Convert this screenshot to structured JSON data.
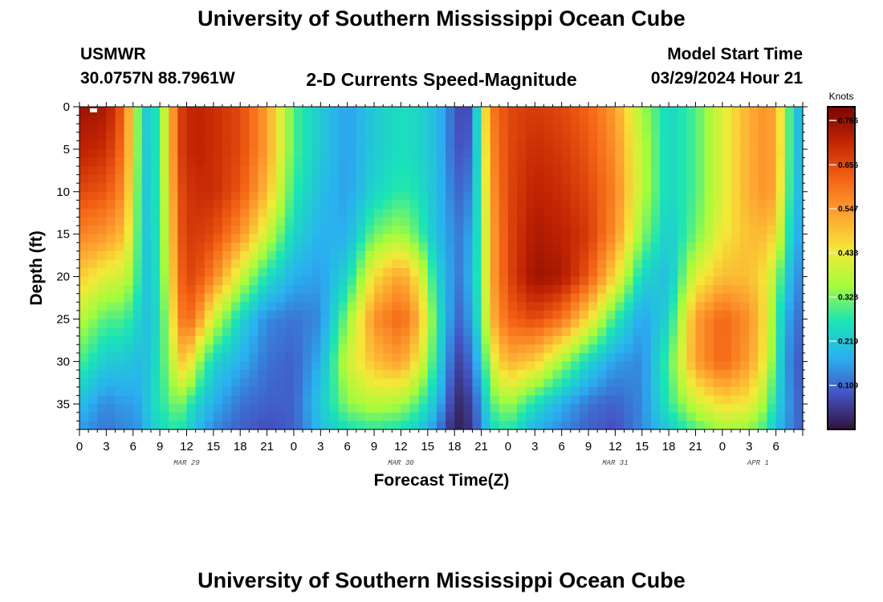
{
  "header": {
    "title": "University of Southern Mississippi Ocean Cube",
    "station": "USMWR",
    "coords": "30.0757N  88.7961W",
    "subtitle": "2-D Currents Speed-Magnitude",
    "model_label": "Model Start Time",
    "model_time": "03/29/2024 Hour 21"
  },
  "footer": {
    "title": "University of Southern Mississippi Ocean Cube"
  },
  "colors": {
    "colormap": [
      "#30123b",
      "#4454c4",
      "#2ab0f0",
      "#1ae4b6",
      "#a4fc3c",
      "#f5e838",
      "#fea331",
      "#f36315",
      "#c32503",
      "#7a0403"
    ]
  },
  "chart_data": {
    "type": "heatmap",
    "xlabel": "Forecast Time(Z)",
    "ylabel": "Depth (ft)",
    "x_range_hours": [
      0,
      81
    ],
    "ylim": [
      0,
      38
    ],
    "y_ticks": [
      0,
      5,
      10,
      15,
      20,
      25,
      30,
      35
    ],
    "x_tick_labels": [
      "0",
      "3",
      "6",
      "9",
      "12",
      "15",
      "18",
      "21",
      "0",
      "3",
      "6",
      "9",
      "12",
      "15",
      "18",
      "21",
      "0",
      "3",
      "6",
      "9",
      "12",
      "15",
      "18",
      "21",
      "0",
      "3",
      "6"
    ],
    "date_labels": [
      {
        "label": "MAR 29",
        "hour": 12
      },
      {
        "label": "MAR 30",
        "hour": 36
      },
      {
        "label": "MAR 31",
        "hour": 60
      },
      {
        "label": "APR 1",
        "hour": 76
      }
    ],
    "colorbar": {
      "title": "Knots",
      "ticks": [
        "0.766",
        "0.656",
        "0.547",
        "0.438",
        "0.328",
        "0.219",
        "0.109"
      ],
      "min": 0.0,
      "max": 0.8
    },
    "speed_profile_knots": {
      "hours": [
        0,
        3,
        5,
        6,
        7,
        8,
        10,
        11,
        12,
        13,
        15,
        18,
        21,
        24,
        27,
        30,
        33,
        36,
        38,
        40,
        42,
        43,
        44,
        45,
        46,
        48,
        51,
        54,
        57,
        60,
        63,
        66,
        69,
        72,
        75,
        77,
        78,
        79,
        80,
        81
      ],
      "depths_ft": [
        0,
        5,
        10,
        15,
        20,
        25,
        30,
        35,
        38
      ],
      "values": [
        [
          0.76,
          0.72,
          0.66,
          0.58,
          0.48,
          0.38,
          0.3,
          0.2,
          0.16
        ],
        [
          0.74,
          0.7,
          0.64,
          0.55,
          0.42,
          0.3,
          0.22,
          0.14,
          0.12
        ],
        [
          0.62,
          0.6,
          0.56,
          0.5,
          0.4,
          0.3,
          0.22,
          0.16,
          0.14
        ],
        [
          0.42,
          0.42,
          0.4,
          0.38,
          0.34,
          0.26,
          0.2,
          0.16,
          0.14
        ],
        [
          0.25,
          0.25,
          0.24,
          0.24,
          0.24,
          0.22,
          0.2,
          0.18,
          0.16
        ],
        [
          0.2,
          0.2,
          0.2,
          0.2,
          0.2,
          0.2,
          0.22,
          0.24,
          0.22
        ],
        [
          0.45,
          0.45,
          0.44,
          0.42,
          0.4,
          0.36,
          0.34,
          0.3,
          0.26
        ],
        [
          0.66,
          0.66,
          0.64,
          0.62,
          0.6,
          0.56,
          0.46,
          0.34,
          0.28
        ],
        [
          0.7,
          0.7,
          0.68,
          0.68,
          0.66,
          0.62,
          0.5,
          0.3,
          0.24
        ],
        [
          0.72,
          0.72,
          0.7,
          0.68,
          0.66,
          0.58,
          0.38,
          0.24,
          0.2
        ],
        [
          0.7,
          0.7,
          0.7,
          0.66,
          0.58,
          0.4,
          0.24,
          0.18,
          0.14
        ],
        [
          0.66,
          0.66,
          0.64,
          0.56,
          0.4,
          0.24,
          0.18,
          0.12,
          0.1
        ],
        [
          0.54,
          0.54,
          0.5,
          0.4,
          0.26,
          0.14,
          0.12,
          0.1,
          0.08
        ],
        [
          0.3,
          0.3,
          0.28,
          0.24,
          0.18,
          0.12,
          0.1,
          0.1,
          0.1
        ],
        [
          0.22,
          0.22,
          0.2,
          0.18,
          0.16,
          0.14,
          0.18,
          0.22,
          0.2
        ],
        [
          0.16,
          0.16,
          0.16,
          0.18,
          0.24,
          0.34,
          0.4,
          0.34,
          0.26
        ],
        [
          0.22,
          0.22,
          0.24,
          0.32,
          0.46,
          0.56,
          0.5,
          0.38,
          0.28
        ],
        [
          0.26,
          0.26,
          0.28,
          0.36,
          0.54,
          0.62,
          0.54,
          0.36,
          0.26
        ],
        [
          0.24,
          0.24,
          0.26,
          0.3,
          0.44,
          0.52,
          0.44,
          0.3,
          0.22
        ],
        [
          0.2,
          0.2,
          0.2,
          0.2,
          0.24,
          0.28,
          0.26,
          0.2,
          0.14
        ],
        [
          0.1,
          0.1,
          0.12,
          0.14,
          0.14,
          0.12,
          0.08,
          0.04,
          0.02
        ],
        [
          0.06,
          0.08,
          0.1,
          0.12,
          0.12,
          0.1,
          0.06,
          0.03,
          0.02
        ],
        [
          0.1,
          0.12,
          0.16,
          0.2,
          0.22,
          0.2,
          0.14,
          0.08,
          0.06
        ],
        [
          0.36,
          0.34,
          0.32,
          0.3,
          0.3,
          0.28,
          0.22,
          0.16,
          0.14
        ],
        [
          0.58,
          0.56,
          0.54,
          0.52,
          0.52,
          0.5,
          0.4,
          0.3,
          0.24
        ],
        [
          0.66,
          0.66,
          0.66,
          0.66,
          0.66,
          0.62,
          0.52,
          0.36,
          0.28
        ],
        [
          0.68,
          0.7,
          0.72,
          0.74,
          0.76,
          0.66,
          0.48,
          0.26,
          0.18
        ],
        [
          0.66,
          0.68,
          0.7,
          0.72,
          0.74,
          0.6,
          0.36,
          0.18,
          0.14
        ],
        [
          0.62,
          0.64,
          0.66,
          0.68,
          0.64,
          0.46,
          0.24,
          0.12,
          0.1
        ],
        [
          0.54,
          0.56,
          0.58,
          0.56,
          0.46,
          0.28,
          0.16,
          0.1,
          0.08
        ],
        [
          0.36,
          0.38,
          0.38,
          0.34,
          0.24,
          0.16,
          0.14,
          0.14,
          0.14
        ],
        [
          0.24,
          0.24,
          0.24,
          0.22,
          0.2,
          0.24,
          0.3,
          0.28,
          0.22
        ],
        [
          0.3,
          0.3,
          0.3,
          0.32,
          0.42,
          0.54,
          0.54,
          0.4,
          0.3
        ],
        [
          0.42,
          0.42,
          0.42,
          0.44,
          0.5,
          0.62,
          0.62,
          0.46,
          0.36
        ],
        [
          0.52,
          0.52,
          0.52,
          0.5,
          0.5,
          0.56,
          0.54,
          0.44,
          0.34
        ],
        [
          0.56,
          0.56,
          0.56,
          0.5,
          0.44,
          0.44,
          0.42,
          0.34,
          0.28
        ],
        [
          0.52,
          0.52,
          0.52,
          0.46,
          0.36,
          0.3,
          0.28,
          0.24,
          0.2
        ],
        [
          0.38,
          0.38,
          0.36,
          0.32,
          0.24,
          0.2,
          0.18,
          0.18,
          0.16
        ],
        [
          0.22,
          0.22,
          0.22,
          0.2,
          0.16,
          0.12,
          0.1,
          0.12,
          0.12
        ],
        [
          0.18,
          0.18,
          0.18,
          0.16,
          0.14,
          0.12,
          0.1,
          0.1,
          0.1
        ]
      ]
    }
  }
}
